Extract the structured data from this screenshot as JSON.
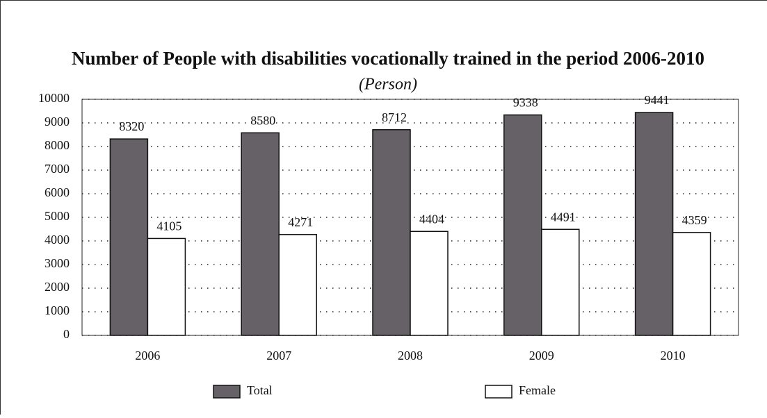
{
  "chart_data": {
    "type": "bar",
    "title": "Number of People with disabilities vocationally trained in the period 2006-2010",
    "subtitle": "(Person)",
    "categories": [
      "2006",
      "2007",
      "2008",
      "2009",
      "2010"
    ],
    "series": [
      {
        "name": "Total",
        "color": "#666166",
        "values": [
          8320,
          8580,
          8712,
          9338,
          9441
        ]
      },
      {
        "name": "Female",
        "color": "#ffffff",
        "values": [
          4105,
          4271,
          4404,
          4491,
          4359
        ]
      }
    ],
    "ylim": [
      0,
      10000
    ],
    "yticks": [
      0,
      1000,
      2000,
      3000,
      4000,
      5000,
      6000,
      7000,
      8000,
      9000,
      10000
    ],
    "grid": true
  }
}
